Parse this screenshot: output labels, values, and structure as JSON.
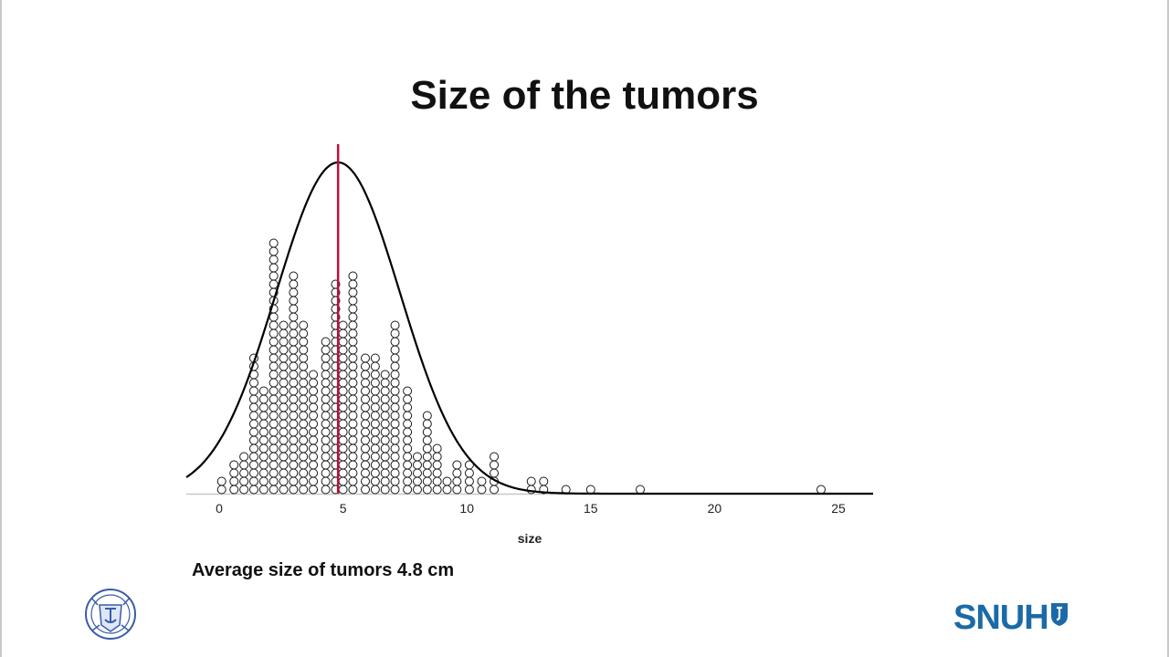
{
  "slide": {
    "title": "Size of the tumors",
    "caption": "Average size of tumors  4.8 cm",
    "logo_left": {
      "icon": "university-seal-icon",
      "text": "VERITAS LUX MEA"
    },
    "logo_right": {
      "text": "SNUH",
      "icon": "hospital-shield-icon",
      "color": "#1b6aa8"
    }
  },
  "chart_data": {
    "type": "dot-histogram",
    "title": "",
    "xlabel": "size",
    "ylabel": "",
    "xlim": [
      -1.3,
      26.5
    ],
    "xticks": [
      0,
      5,
      10,
      15,
      20,
      25
    ],
    "grid": false,
    "legend": "none",
    "bin_width": 0.5,
    "stacks": [
      {
        "x": 0.1,
        "count": 2
      },
      {
        "x": 0.6,
        "count": 4
      },
      {
        "x": 1.0,
        "count": 5
      },
      {
        "x": 1.4,
        "count": 17
      },
      {
        "x": 1.8,
        "count": 13
      },
      {
        "x": 2.2,
        "count": 31
      },
      {
        "x": 2.6,
        "count": 21
      },
      {
        "x": 3.0,
        "count": 27
      },
      {
        "x": 3.4,
        "count": 21
      },
      {
        "x": 3.8,
        "count": 15
      },
      {
        "x": 4.3,
        "count": 19
      },
      {
        "x": 4.7,
        "count": 26
      },
      {
        "x": 5.0,
        "count": 21
      },
      {
        "x": 5.4,
        "count": 27
      },
      {
        "x": 5.9,
        "count": 17
      },
      {
        "x": 6.3,
        "count": 17
      },
      {
        "x": 6.7,
        "count": 15
      },
      {
        "x": 7.1,
        "count": 21
      },
      {
        "x": 7.6,
        "count": 13
      },
      {
        "x": 8.0,
        "count": 5
      },
      {
        "x": 8.4,
        "count": 10
      },
      {
        "x": 8.8,
        "count": 6
      },
      {
        "x": 9.2,
        "count": 2
      },
      {
        "x": 9.6,
        "count": 4
      },
      {
        "x": 10.1,
        "count": 4
      },
      {
        "x": 10.6,
        "count": 2
      },
      {
        "x": 11.1,
        "count": 5
      },
      {
        "x": 12.6,
        "count": 2
      },
      {
        "x": 13.1,
        "count": 2
      },
      {
        "x": 14.0,
        "count": 1
      },
      {
        "x": 15.0,
        "count": 1
      },
      {
        "x": 17.0,
        "count": 1
      },
      {
        "x": 24.3,
        "count": 1
      }
    ],
    "fitted_curve": {
      "name": "normal",
      "mean": 4.8,
      "sd": 2.5
    },
    "mean_line": {
      "x": 4.8,
      "color": "#b5133c"
    },
    "curve_color": "#000000",
    "marker_color": "#1a1a1a"
  }
}
